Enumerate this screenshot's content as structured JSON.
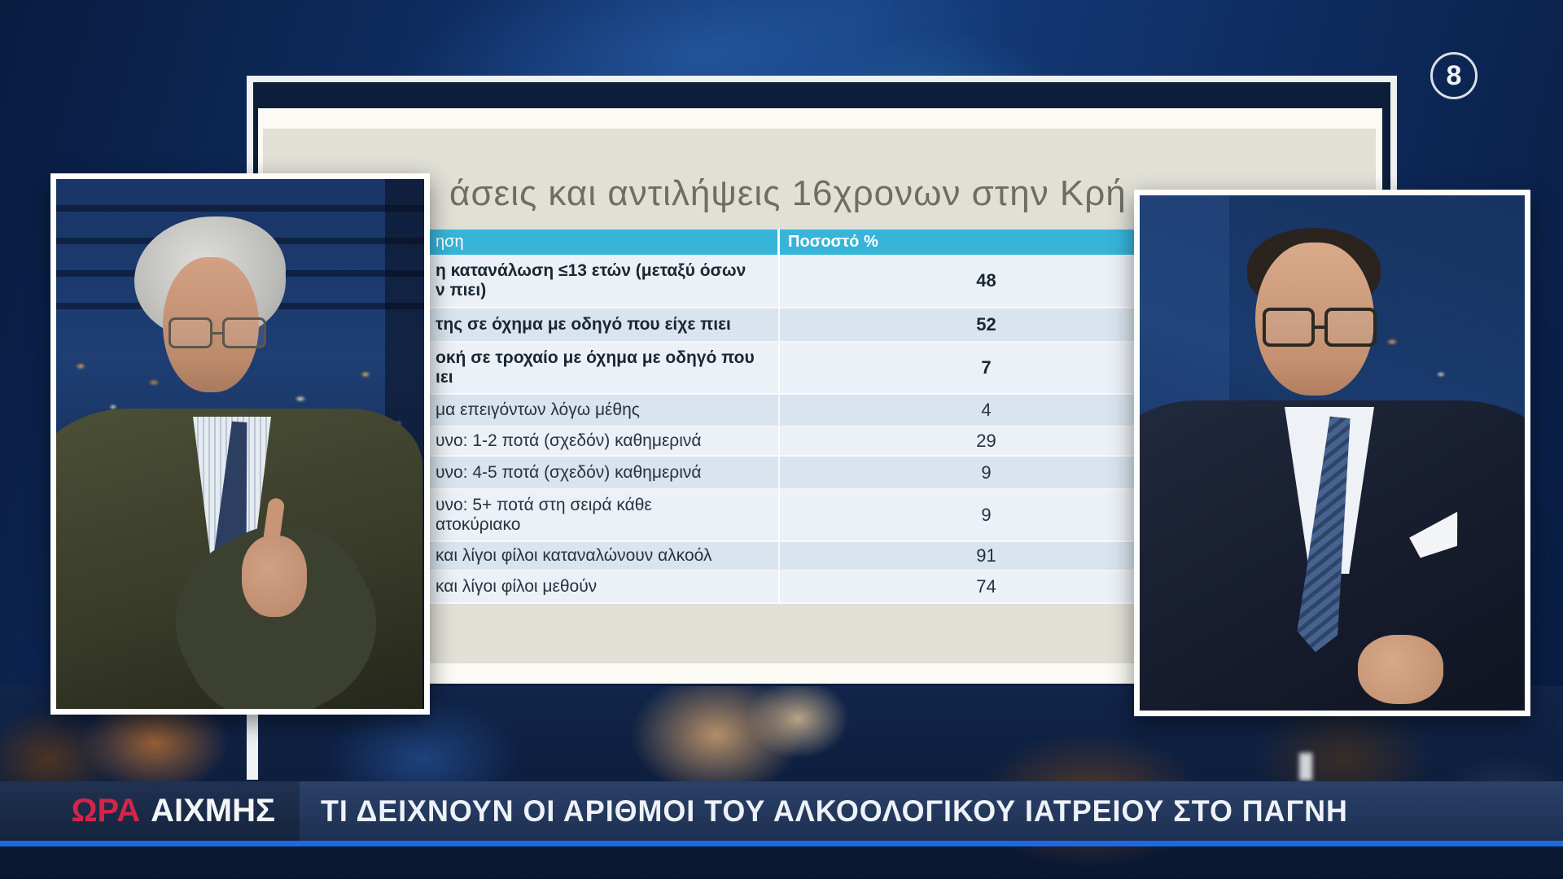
{
  "channel": {
    "logo_number": "8"
  },
  "slide": {
    "title_visible": "άσεις και αντιλήψεις 16χρονων στην Κρή",
    "table": {
      "header": {
        "question_visible": "ηση",
        "percent": "Ποσοστό %"
      },
      "rows": [
        {
          "label_lines": [
            "η κατανάλωση ≤13 ετών (μεταξύ όσων",
            "ν πιει)"
          ],
          "value": "48"
        },
        {
          "label_lines": [
            "της σε όχημα με οδηγό που είχε πιει"
          ],
          "value": "52"
        },
        {
          "label_lines": [
            "οκή σε τροχαίο με όχημα με οδηγό που",
            "ιει"
          ],
          "value": "7"
        },
        {
          "label_lines": [
            "μα επειγόντων λόγω μέθης"
          ],
          "value": "4"
        },
        {
          "label_lines": [
            "υνο: 1-2 ποτά (σχεδόν) καθημερινά"
          ],
          "value": "29"
        },
        {
          "label_lines": [
            "υνο: 4-5 ποτά (σχεδόν) καθημερινά"
          ],
          "value": "9"
        },
        {
          "label_lines": [
            "υνο: 5+ ποτά στη σειρά κάθε",
            "ατοκύριακο"
          ],
          "value": "9"
        },
        {
          "label_lines": [
            "και λίγοι φίλοι καταναλώνουν αλκοόλ"
          ],
          "value": "91"
        },
        {
          "label_lines": [
            "και λίγοι φίλοι μεθούν"
          ],
          "value": "74"
        }
      ]
    }
  },
  "chart_data": {
    "type": "table",
    "title": "άσεις και αντιλήψεις 16χρονων στην Κρή",
    "columns": [
      "ηση",
      "Ποσοστό %"
    ],
    "categories": [
      "η κατανάλωση ≤13 ετών (μεταξύ όσων ν πιει)",
      "της σε όχημα με οδηγό που είχε πιει",
      "οκή σε τροχαίο με όχημα με οδηγό που ιει",
      "μα επειγόντων λόγω μέθης",
      "υνο: 1-2 ποτά (σχεδόν) καθημερινά",
      "υνο: 4-5 ποτά (σχεδόν) καθημερινά",
      "υνο: 5+ ποτά στη σειρά κάθε ατοκύριακο",
      "και λίγοι φίλοι καταναλώνουν αλκοόλ",
      "και λίγοι φίλοι μεθούν"
    ],
    "values": [
      48,
      52,
      7,
      4,
      29,
      9,
      9,
      91,
      74
    ]
  },
  "banner": {
    "show_name_red": "ΩΡΑ",
    "show_name_white": "ΑΙΧΜΗΣ",
    "headline": "ΤΙ ΔΕΙΧΝΟΥΝ ΟΙ ΑΡΙΘΜΟΙ ΤΟΥ ΑΛΚΟΟΛΟΓΙΚΟΥ ΙΑΤΡΕΙΟΥ ΣΤΟ ΠΑΓΝΗ"
  },
  "colors": {
    "table_header_cyan": "#38b4d9",
    "row_odd": "#d9e4ee",
    "row_even": "#ebf1f7",
    "slide_background": "#e1e0d7",
    "banner_red": "#d5244a",
    "banner_underline_blue": "#1b6ae0",
    "studio_blue": "#143e7e"
  }
}
